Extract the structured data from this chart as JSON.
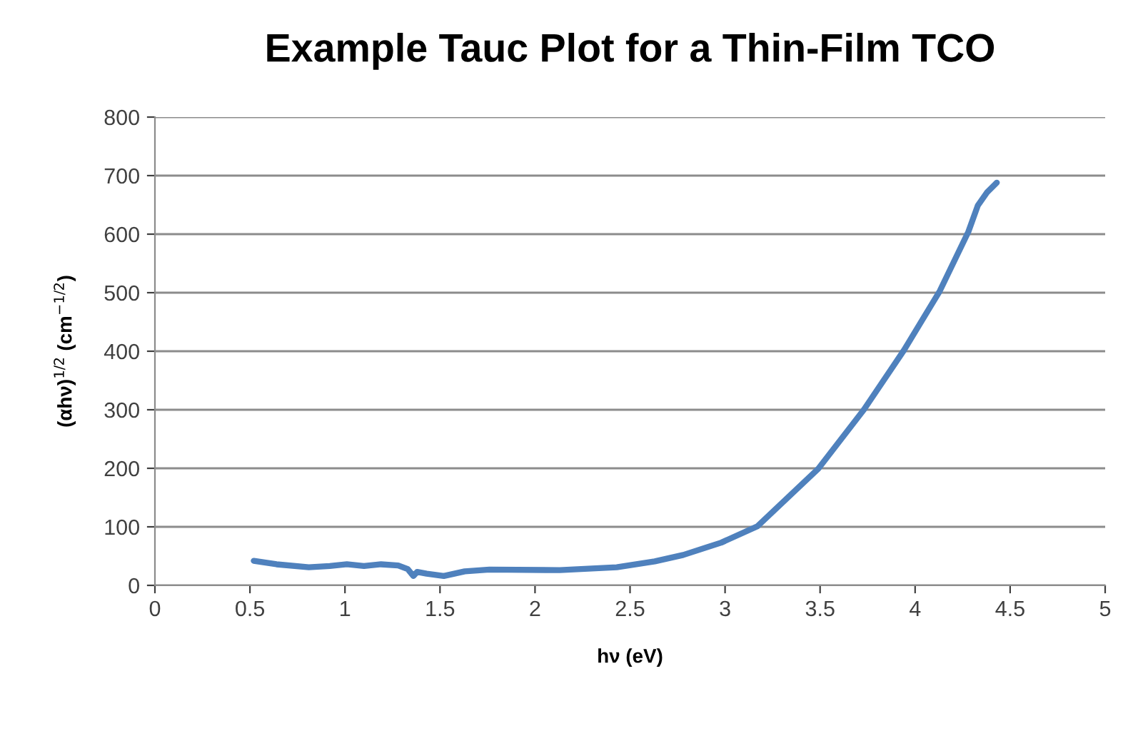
{
  "chart_data": {
    "type": "line",
    "title": "Example Tauc Plot for a Thin-Film TCO",
    "xlabel": "hν (eV)",
    "ylabel": "(αhν)$^{1/2}$ (cm$^{−1/2}$)",
    "xlim": [
      0,
      5
    ],
    "xticks": [
      0,
      0.5,
      1,
      1.5,
      2,
      2.5,
      3,
      3.5,
      4,
      4.5,
      5
    ],
    "ylim": [
      0,
      800
    ],
    "yticks": [
      0,
      100,
      200,
      300,
      400,
      500,
      600,
      700,
      800
    ],
    "grid": "y",
    "marker": "none",
    "line_style": "solid",
    "series": [
      {
        "color": "#4f81bd",
        "x": [
          0.52,
          0.64,
          0.81,
          0.92,
          1.01,
          1.1,
          1.19,
          1.28,
          1.33,
          1.36,
          1.38,
          1.43,
          1.52,
          1.63,
          1.76,
          2.13,
          2.43,
          2.63,
          2.78,
          2.98,
          3.17,
          3.49,
          3.73,
          3.94,
          4.13,
          4.28,
          4.33,
          4.38,
          4.43
        ],
        "values": [
          42,
          36,
          31,
          33,
          36,
          33,
          36,
          34,
          28,
          16,
          23,
          20,
          16,
          24,
          27,
          26,
          31,
          41,
          52,
          73,
          101,
          199,
          300,
          401,
          503,
          604,
          649,
          672,
          688
        ]
      }
    ]
  }
}
